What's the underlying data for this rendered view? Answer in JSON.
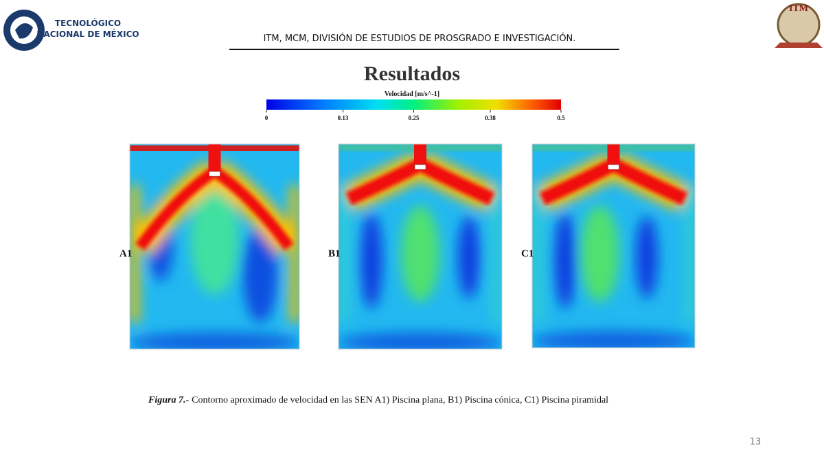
{
  "header": {
    "logo_text": [
      "TECNOLÓGICO",
      "NACIONAL DE MÉXICO"
    ],
    "title": "ITM, MCM, DIVISIÓN DE ESTUDIOS DE PROSGRADO E INVESTIGACIÓN.",
    "right_logo": "ITM"
  },
  "slide": {
    "title": "Resultados",
    "colorbar": {
      "label": "Velocidad [m/s^-1]",
      "lim": [
        0,
        0.5
      ],
      "ticks": [
        0,
        0.13,
        0.25,
        0.38,
        0.5
      ]
    },
    "panels": [
      {
        "label": "A1"
      },
      {
        "label": "B1"
      },
      {
        "label": "C1"
      }
    ],
    "caption": {
      "figure": "Figura 7.-",
      "text": "Contorno aproximado de velocidad en las SEN A1) Piscina plana, B1) Piscina cónica, C1) Piscina piramidal"
    }
  },
  "page_number": "13"
}
